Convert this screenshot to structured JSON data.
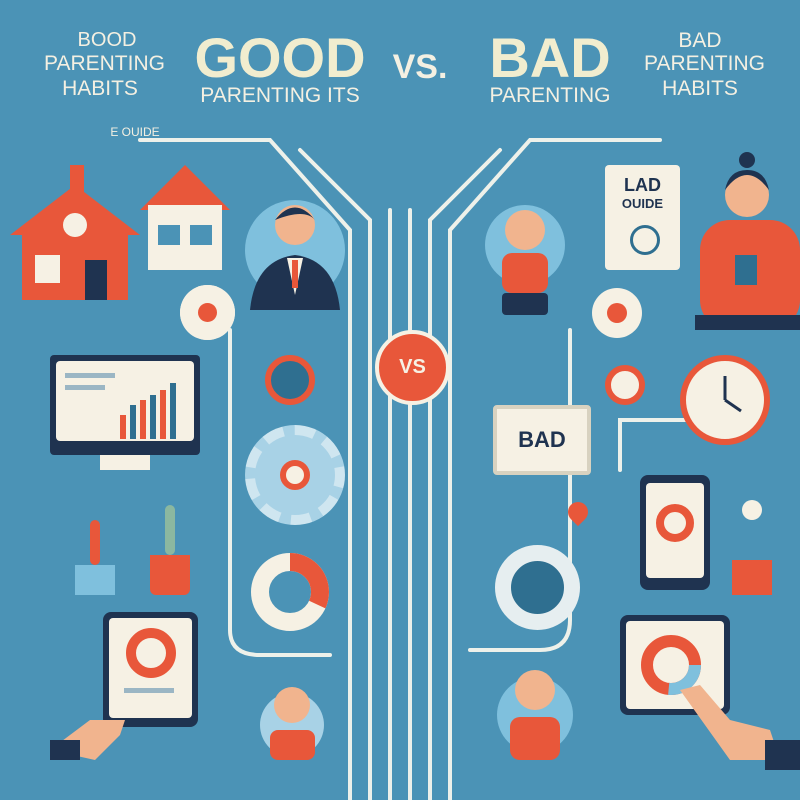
{
  "title": {
    "left_block": [
      "BOOD",
      "PARENTING",
      "HABITS"
    ],
    "good": "GOOD",
    "good_sub": "PARENTING ITS",
    "vs": "VS.",
    "bad": "BAD",
    "bad_sub": "PARENTING",
    "right_block": [
      "BAD",
      "PARENTING",
      "HABITS"
    ]
  },
  "labels": {
    "left_guide": "E OUIDE",
    "right_guide_title": "LAD",
    "right_guide_sub": "OUIDE",
    "center_badge": "VS",
    "bad_sign": "BAD"
  },
  "colors": {
    "background": "#4b93b6",
    "accent": "#e8573a",
    "cream": "#f4f0e2",
    "navy": "#1f3350"
  }
}
